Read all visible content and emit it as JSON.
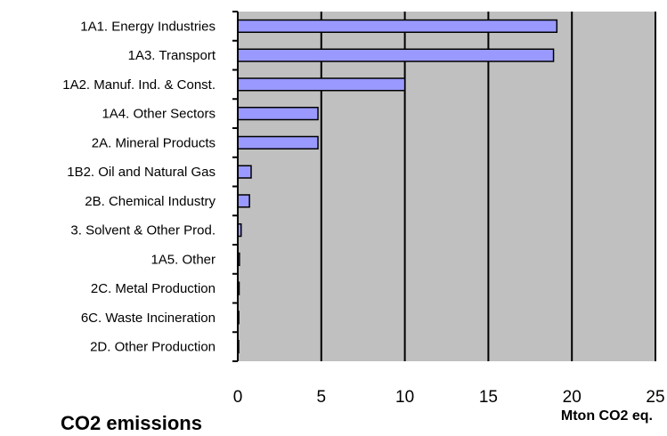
{
  "chart_data": {
    "type": "bar",
    "orientation": "horizontal",
    "title": "CO2 emissions",
    "xlabel": "Mton CO2 eq.",
    "ylabel": "",
    "xlim": [
      0,
      25
    ],
    "xticks": [
      "0",
      "5",
      "10",
      "15",
      "20",
      "25"
    ],
    "grid": true,
    "legend": "none",
    "categories": [
      "1A1. Energy Industries",
      "1A3. Transport",
      "1A2. Manuf. Ind. & Const.",
      "1A4. Other Sectors",
      "2A. Mineral Products",
      "1B2. Oil and Natural Gas",
      "2B. Chemical Industry",
      "3. Solvent & Other Prod.",
      "1A5. Other",
      "2C. Metal Production",
      "6C. Waste Incineration",
      "2D. Other Production"
    ],
    "values": [
      19.1,
      18.9,
      10.0,
      4.8,
      4.8,
      0.8,
      0.7,
      0.2,
      0.1,
      0.08,
      0.06,
      0.05
    ],
    "colors": {
      "bar_fill": "#9999ff",
      "bar_stroke": "#000000",
      "plot_background": "#c0c0c0",
      "grid_line": "#000000"
    }
  }
}
